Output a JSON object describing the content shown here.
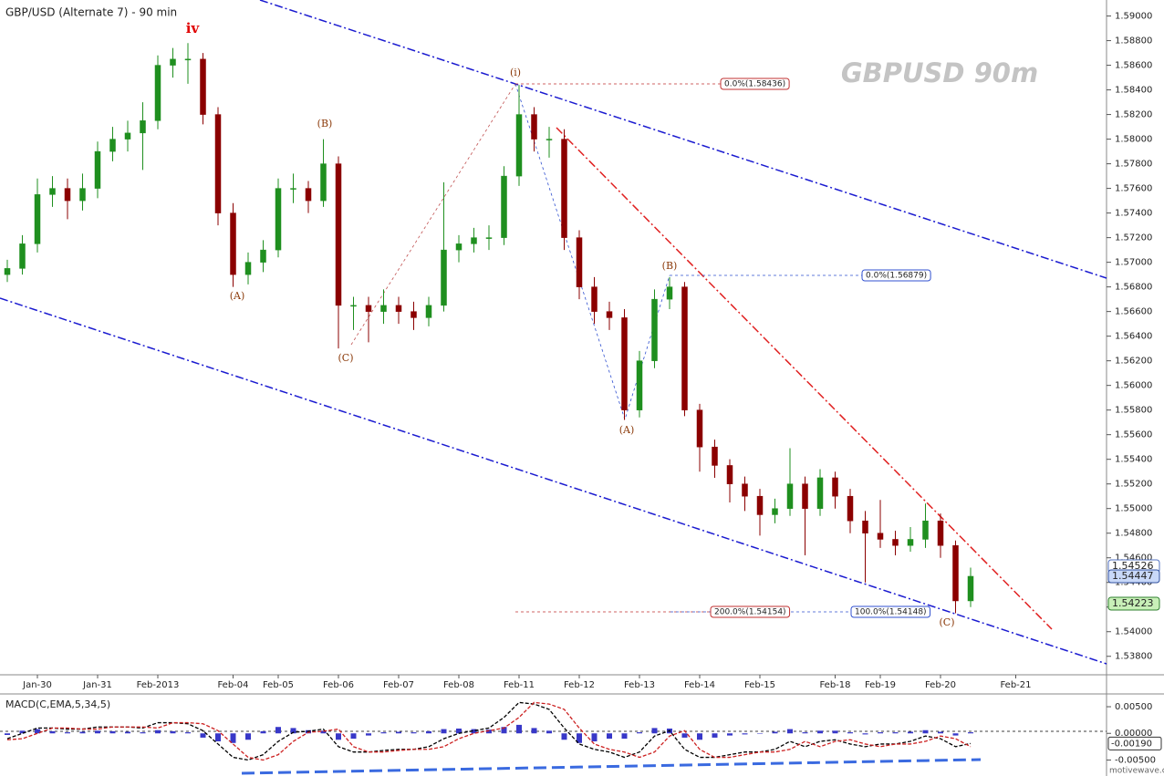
{
  "chart_data": [
    {
      "type": "candlestick",
      "title": "GBP/USD (Alternate 7) - 90 min",
      "watermark": "GBPUSD  90m",
      "source": "motivewave.com",
      "categories": [
        null,
        null,
        "Jan-30",
        null,
        null,
        null,
        "Jan-31",
        null,
        null,
        null,
        "Feb-2013",
        null,
        null,
        null,
        null,
        "Feb-04",
        null,
        null,
        "Feb-05",
        null,
        null,
        null,
        "Feb-06",
        null,
        null,
        null,
        "Feb-07",
        null,
        null,
        null,
        "Feb-08",
        null,
        null,
        null,
        "Feb-11",
        null,
        null,
        null,
        "Feb-12",
        null,
        null,
        null,
        "Feb-13",
        null,
        null,
        null,
        "Feb-14",
        null,
        null,
        null,
        "Feb-15",
        null,
        null,
        null,
        null,
        "Feb-18",
        null,
        null,
        "Feb-19",
        null,
        null,
        null,
        "Feb-20",
        null,
        null,
        null,
        null,
        "Feb-21"
      ],
      "open": [
        1.569,
        1.5695,
        1.5715,
        1.5755,
        1.576,
        1.575,
        1.576,
        1.579,
        1.58,
        1.5805,
        1.5815,
        1.586,
        1.5865,
        1.5865,
        1.582,
        1.574,
        1.569,
        1.57,
        1.571,
        1.576,
        1.576,
        1.575,
        1.578,
        1.5665,
        1.5665,
        1.566,
        1.5665,
        1.566,
        1.5655,
        1.5665,
        1.571,
        1.5715,
        1.572,
        1.572,
        1.577,
        1.582,
        1.58,
        1.58,
        1.572,
        1.568,
        1.566,
        1.5655,
        1.558,
        1.562,
        1.567,
        1.568,
        1.558,
        1.555,
        1.5535,
        1.552,
        1.551,
        1.5495,
        1.55,
        1.552,
        1.55,
        1.5525,
        1.551,
        1.549,
        1.548,
        1.5475,
        1.547,
        1.5475,
        1.549,
        1.547,
        1.5425,
        null,
        null,
        null
      ],
      "high": [
        1.5702,
        1.5722,
        1.5768,
        1.577,
        1.5768,
        1.5772,
        1.5798,
        1.581,
        1.5815,
        1.583,
        1.5868,
        1.5874,
        1.5878,
        1.587,
        1.5826,
        1.5748,
        1.5708,
        1.5718,
        1.5768,
        1.5772,
        1.5766,
        1.58,
        1.5786,
        1.5672,
        1.5672,
        1.5678,
        1.5672,
        1.5668,
        1.5672,
        1.5765,
        1.5722,
        1.5728,
        1.573,
        1.5778,
        1.5844,
        1.5826,
        1.581,
        1.5808,
        1.5726,
        1.5688,
        1.5668,
        1.5662,
        1.5628,
        1.5678,
        1.5688,
        1.5684,
        1.5585,
        1.5556,
        1.554,
        1.5526,
        1.5516,
        1.5508,
        1.5549,
        1.5526,
        1.5532,
        1.553,
        1.5516,
        1.5498,
        1.5507,
        1.5482,
        1.5485,
        1.5504,
        1.5496,
        1.5474,
        1.5452,
        null,
        null,
        null
      ],
      "low": [
        1.5684,
        1.569,
        1.5708,
        1.5745,
        1.5735,
        1.5742,
        1.5752,
        1.5782,
        1.579,
        1.5775,
        1.5808,
        1.585,
        1.5845,
        1.5812,
        1.573,
        1.568,
        1.5682,
        1.5692,
        1.5704,
        1.5748,
        1.574,
        1.5745,
        1.563,
        1.5645,
        1.5635,
        1.565,
        1.565,
        1.5645,
        1.5648,
        1.566,
        1.57,
        1.5708,
        1.571,
        1.5714,
        1.5762,
        1.579,
        1.5785,
        1.571,
        1.567,
        1.565,
        1.5645,
        1.5572,
        1.5574,
        1.5614,
        1.5662,
        1.5575,
        1.553,
        1.5525,
        1.5505,
        1.5498,
        1.5478,
        1.5488,
        1.5494,
        1.5462,
        1.5494,
        1.55,
        1.548,
        1.544,
        1.5468,
        1.5462,
        1.5465,
        1.5468,
        1.546,
        1.5415,
        1.542,
        null,
        null,
        null
      ],
      "close": [
        1.5695,
        1.5715,
        1.5755,
        1.576,
        1.575,
        1.576,
        1.579,
        1.58,
        1.5805,
        1.5815,
        1.586,
        1.5865,
        1.5865,
        1.582,
        1.574,
        1.569,
        1.57,
        1.571,
        1.576,
        1.576,
        1.575,
        1.578,
        1.5665,
        1.5665,
        1.566,
        1.5665,
        1.566,
        1.5655,
        1.5665,
        1.571,
        1.5715,
        1.572,
        1.572,
        1.577,
        1.582,
        1.58,
        1.58,
        1.572,
        1.568,
        1.566,
        1.5655,
        1.558,
        1.562,
        1.567,
        1.568,
        1.558,
        1.555,
        1.5535,
        1.552,
        1.551,
        1.5495,
        1.55,
        1.552,
        1.55,
        1.5525,
        1.551,
        1.549,
        1.548,
        1.5475,
        1.547,
        1.5475,
        1.549,
        1.547,
        1.5425,
        1.5445,
        null,
        null,
        null
      ],
      "up_color": "#1f8f1f",
      "down_color": "#8b0000",
      "ylim": [
        1.5365,
        1.5913
      ],
      "yticks": [
        {
          "value": 1.538,
          "label": "1.53800"
        },
        {
          "value": 1.54,
          "label": "1.54000"
        },
        {
          "value": 1.542,
          "label": "1.54200"
        },
        {
          "value": 1.544,
          "label": "1.54400"
        },
        {
          "value": 1.546,
          "label": "1.54600"
        },
        {
          "value": 1.548,
          "label": "1.54800"
        },
        {
          "value": 1.55,
          "label": "1.55000"
        },
        {
          "value": 1.552,
          "label": "1.55200"
        },
        {
          "value": 1.554,
          "label": "1.55400"
        },
        {
          "value": 1.556,
          "label": "1.55600"
        },
        {
          "value": 1.558,
          "label": "1.55800"
        },
        {
          "value": 1.56,
          "label": "1.56000"
        },
        {
          "value": 1.562,
          "label": "1.56200"
        },
        {
          "value": 1.564,
          "label": "1.56400"
        },
        {
          "value": 1.566,
          "label": "1.56600"
        },
        {
          "value": 1.568,
          "label": "1.56800"
        },
        {
          "value": 1.57,
          "label": "1.57000"
        },
        {
          "value": 1.572,
          "label": "1.57200"
        },
        {
          "value": 1.574,
          "label": "1.57400"
        },
        {
          "value": 1.576,
          "label": "1.57600"
        },
        {
          "value": 1.578,
          "label": "1.57800"
        },
        {
          "value": 1.58,
          "label": "1.58000"
        },
        {
          "value": 1.582,
          "label": "1.58200"
        },
        {
          "value": 1.584,
          "label": "1.58400"
        },
        {
          "value": 1.586,
          "label": "1.58600"
        },
        {
          "value": 1.588,
          "label": "1.58800"
        },
        {
          "value": 1.59,
          "label": "1.59000"
        }
      ],
      "wave_labels": [
        "iv",
        "(A)",
        "(B)",
        "(C)",
        "(i)",
        "(A)",
        "(B)",
        "(C)"
      ],
      "fib_labels": [
        "0.0%(1.58436)",
        "0.0%(1.56879)",
        "200.0%(1.54154)",
        "100.0%(1.54148)"
      ],
      "price_readouts": [
        "1.54526",
        "1.54447",
        "1.54223"
      ]
    },
    {
      "type": "macd",
      "title": "MACD(C,EMA,5,34,5)",
      "readout": "-0.00190",
      "ylim": [
        -0.008,
        0.0074
      ],
      "yticks": [
        {
          "value": 0.005,
          "label": "0.00500"
        },
        {
          "value": 0,
          "label": "0.00000"
        },
        {
          "value": -0.005,
          "label": "-0.00500"
        }
      ],
      "series": [
        {
          "style": "bar",
          "color": "#3838c8",
          "values": [
            -0.0003,
            0.0005,
            0.0008,
            0.0004,
            0.0002,
            0.0003,
            0.0005,
            0.0004,
            0.0003,
            0.0002,
            0.0006,
            0.0004,
            0.0002,
            -0.0008,
            -0.0015,
            -0.0018,
            -0.0012,
            0.0004,
            0.0012,
            0.001,
            0.0006,
            0.0005,
            -0.0012,
            -0.001,
            -0.0004,
            0.0002,
            0.0003,
            0.0002,
            0.0004,
            0.0008,
            0.0009,
            0.0008,
            0.0007,
            0.0012,
            0.0016,
            0.001,
            0.0005,
            -0.0012,
            -0.0018,
            -0.0015,
            -0.001,
            -0.001,
            0.0002,
            0.001,
            0.0009,
            -0.0008,
            -0.0012,
            -0.0008,
            -0.0004,
            -0.0002,
            0,
            0.0003,
            0.0008,
            0.0002,
            0.0005,
            0.0005,
            0.0002,
            -0.0002,
            0.0002,
            0.0002,
            0.0003,
            0.0006,
            0.0003,
            -0.0004,
            0.0002,
            null,
            null,
            null
          ]
        },
        {
          "style": "line",
          "color": "#000000",
          "values": [
            -0.001,
            0,
            0.001,
            0.001,
            0.0008,
            0.0008,
            0.0012,
            0.0012,
            0.0012,
            0.001,
            0.002,
            0.002,
            0.0018,
            0.0005,
            -0.002,
            -0.0045,
            -0.005,
            -0.004,
            -0.0015,
            0.0002,
            0.0004,
            0.0008,
            -0.0025,
            -0.0035,
            -0.0035,
            -0.0032,
            -0.003,
            -0.003,
            -0.0025,
            -0.001,
            0,
            0.0005,
            0.001,
            0.003,
            0.0058,
            0.0055,
            0.0045,
            0.001,
            -0.002,
            -0.003,
            -0.0035,
            -0.0045,
            -0.0035,
            -0.0005,
            0.0005,
            -0.003,
            -0.0045,
            -0.0045,
            -0.004,
            -0.0035,
            -0.0035,
            -0.003,
            -0.0015,
            -0.0025,
            -0.0015,
            -0.0012,
            -0.002,
            -0.0025,
            -0.002,
            -0.002,
            -0.0015,
            -0.0005,
            -0.001,
            -0.0025,
            -0.0019,
            null,
            null,
            null
          ]
        },
        {
          "style": "line",
          "color": "#cc2020",
          "values": [
            -0.0012,
            -0.001,
            0,
            0.001,
            0.001,
            0.0008,
            0.0008,
            0.0012,
            0.0012,
            0.0012,
            0.001,
            0.002,
            0.002,
            0.0018,
            0.0005,
            -0.002,
            -0.0045,
            -0.005,
            -0.004,
            -0.0015,
            0.0002,
            0.0004,
            0.0008,
            -0.0025,
            -0.0035,
            -0.0035,
            -0.0032,
            -0.003,
            -0.003,
            -0.0025,
            -0.001,
            0,
            0.0005,
            0.001,
            0.003,
            0.0058,
            0.0055,
            0.0045,
            0.001,
            -0.002,
            -0.003,
            -0.0035,
            -0.0045,
            -0.0035,
            -0.0005,
            0.0005,
            -0.003,
            -0.0045,
            -0.0045,
            -0.004,
            -0.0035,
            -0.0035,
            -0.003,
            -0.0015,
            -0.0025,
            -0.0015,
            -0.0012,
            -0.002,
            -0.0025,
            -0.002,
            -0.002,
            -0.0015,
            -0.0005,
            -0.001,
            -0.0025,
            null,
            null,
            null
          ]
        }
      ]
    }
  ]
}
